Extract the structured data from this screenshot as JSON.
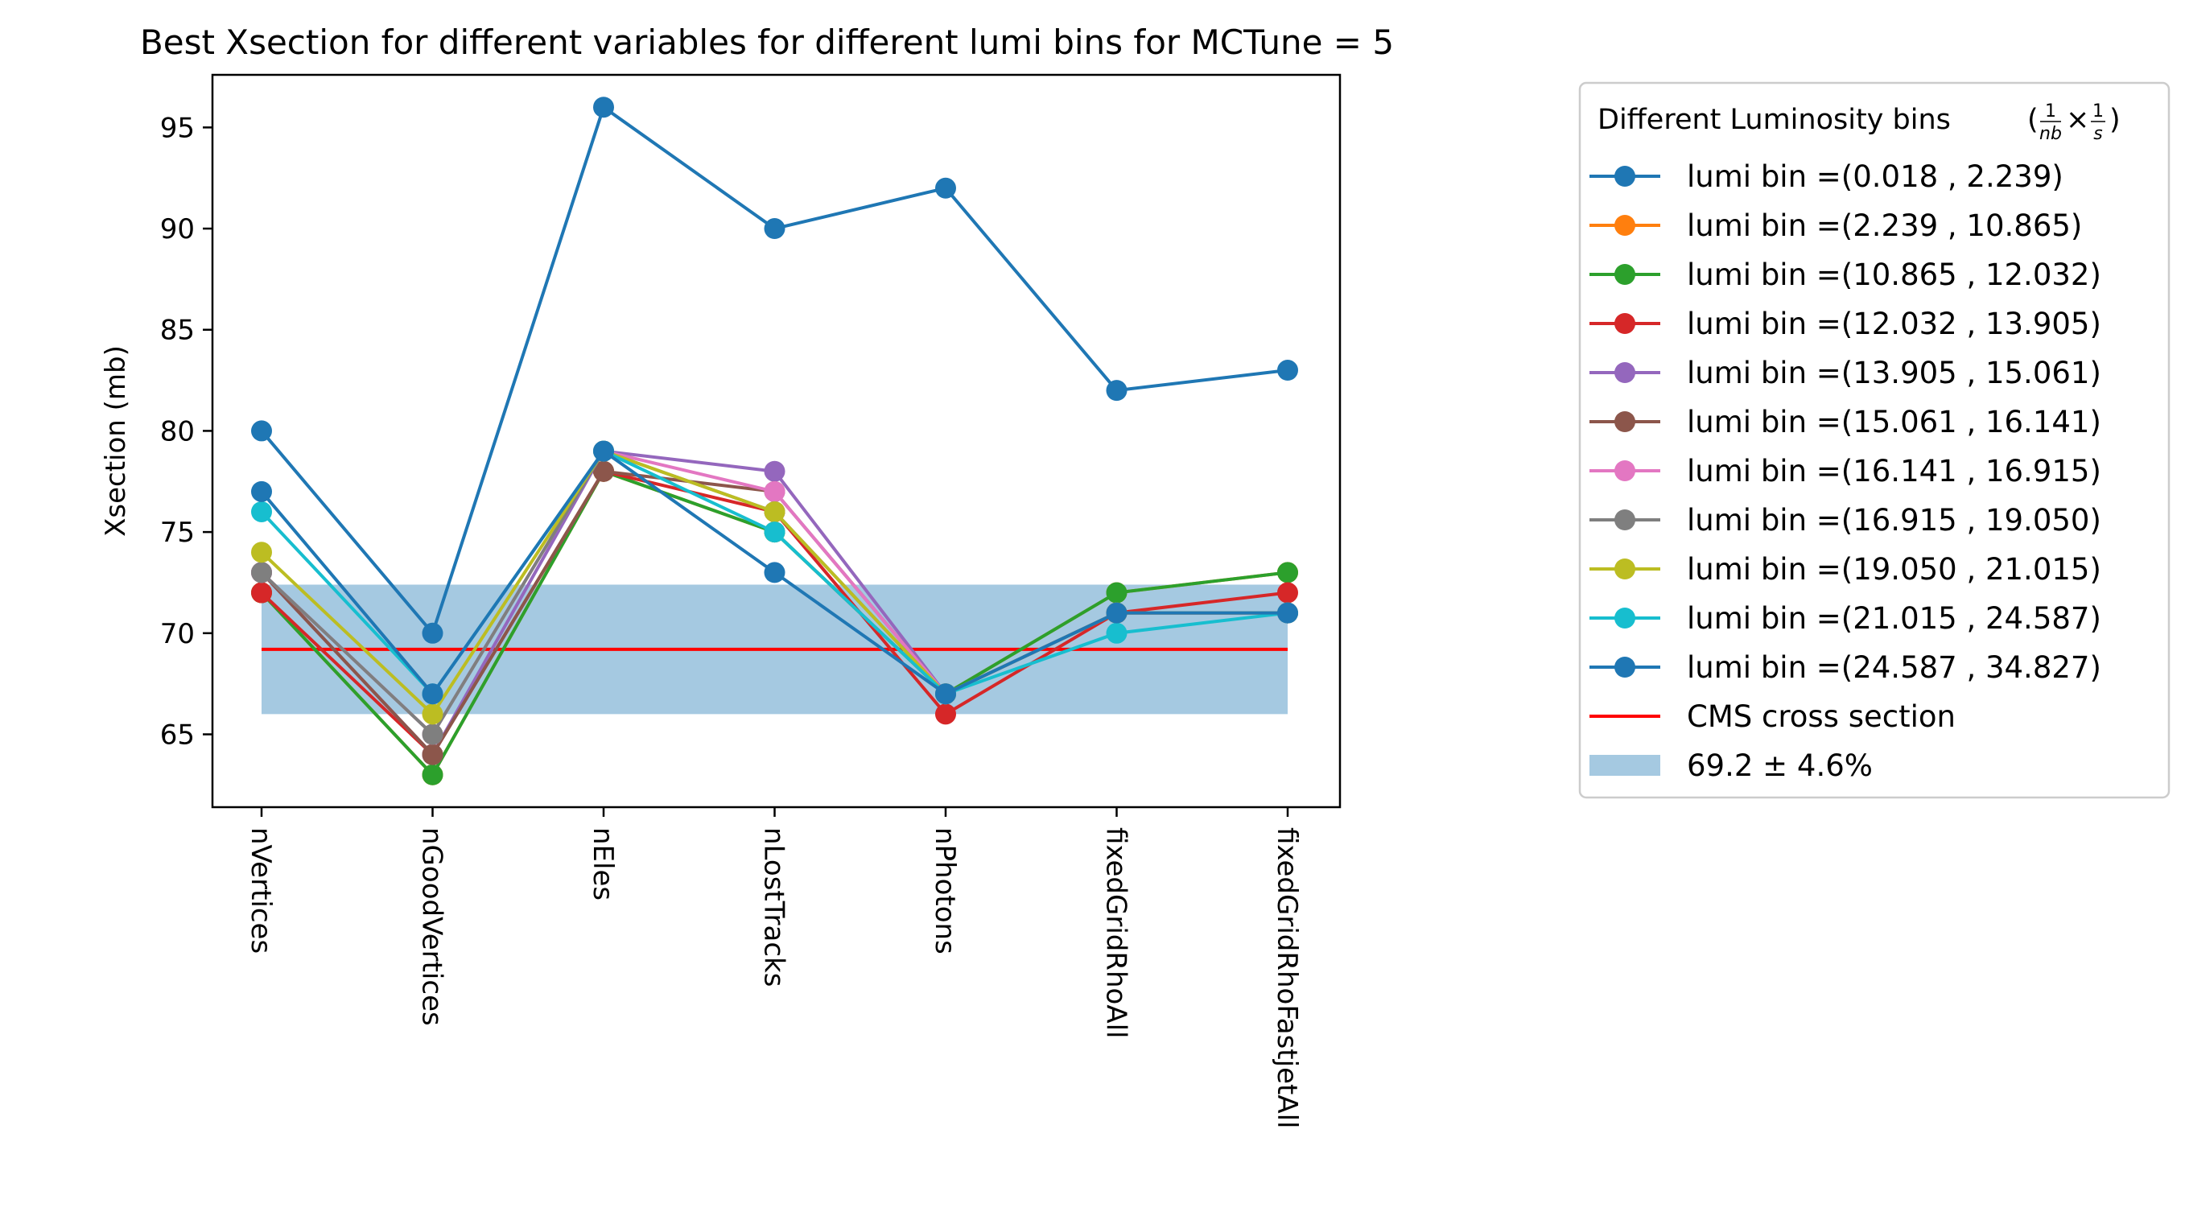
{
  "chart_data": {
    "type": "line",
    "title": "Best Xsection for different variables for different lumi bins for MCTune = 5",
    "xlabel": "",
    "ylabel": "Xsection (mb)",
    "categories": [
      "nVertices",
      "nGoodVertices",
      "nEles",
      "nLostTracks",
      "nPhotons",
      "fixedGridRhoAll",
      "fixedGridRhoFastjetAll"
    ],
    "ylim": [
      61.4,
      97.6
    ],
    "yticks": [
      65,
      70,
      75,
      80,
      85,
      90,
      95
    ],
    "grid": false,
    "legend_position": "outside-right",
    "legend_title": "Different Luminosity bins",
    "legend_title_unit": {
      "open": "(",
      "n1": "1",
      "d1": "nb",
      "times": "×",
      "n2": "1",
      "d2": "s",
      "close": ")"
    },
    "series": [
      {
        "name": "lumi bin =(0.018 , 2.239)",
        "color": "#1f77b4",
        "values": [
          80,
          70,
          96,
          90,
          92,
          82,
          83
        ]
      },
      {
        "name": "lumi bin =(2.239 , 10.865)",
        "color": "#ff7f0e",
        "values": [
          72,
          63,
          78,
          75,
          67,
          72,
          73
        ]
      },
      {
        "name": "lumi bin =(10.865 , 12.032)",
        "color": "#2ca02c",
        "values": [
          72,
          63,
          78,
          75,
          67,
          72,
          73
        ]
      },
      {
        "name": "lumi bin =(12.032 , 13.905)",
        "color": "#d62728",
        "values": [
          72,
          64,
          78,
          76,
          66,
          71,
          72
        ]
      },
      {
        "name": "lumi bin =(13.905 , 15.061)",
        "color": "#9467bd",
        "values": [
          73,
          64,
          79,
          78,
          67,
          71,
          71
        ]
      },
      {
        "name": "lumi bin =(15.061 , 16.141)",
        "color": "#8c564b",
        "values": [
          73,
          64,
          78,
          77,
          67,
          71,
          71
        ]
      },
      {
        "name": "lumi bin =(16.141 , 16.915)",
        "color": "#e377c2",
        "values": [
          73,
          65,
          79,
          77,
          67,
          71,
          71
        ]
      },
      {
        "name": "lumi bin =(16.915 , 19.050)",
        "color": "#7f7f7f",
        "values": [
          73,
          65,
          79,
          76,
          67,
          71,
          71
        ]
      },
      {
        "name": "lumi bin =(19.050 , 21.015)",
        "color": "#bcbd22",
        "values": [
          74,
          66,
          79,
          76,
          67,
          71,
          71
        ]
      },
      {
        "name": "lumi bin =(21.015 , 24.587)",
        "color": "#17becf",
        "values": [
          76,
          67,
          79,
          75,
          67,
          70,
          71
        ]
      },
      {
        "name": "lumi bin =(24.587 , 34.827)",
        "color": "#1f77b4",
        "values": [
          77,
          67,
          79,
          73,
          67,
          71,
          71
        ]
      }
    ],
    "reference_line": {
      "name": "CMS cross section",
      "value": 69.2,
      "color": "#ff0000"
    },
    "band": {
      "name": "69.2 ± 4.6%",
      "low": 66.0,
      "high": 72.4,
      "color": "#1f77b4",
      "opacity": 0.4
    }
  }
}
